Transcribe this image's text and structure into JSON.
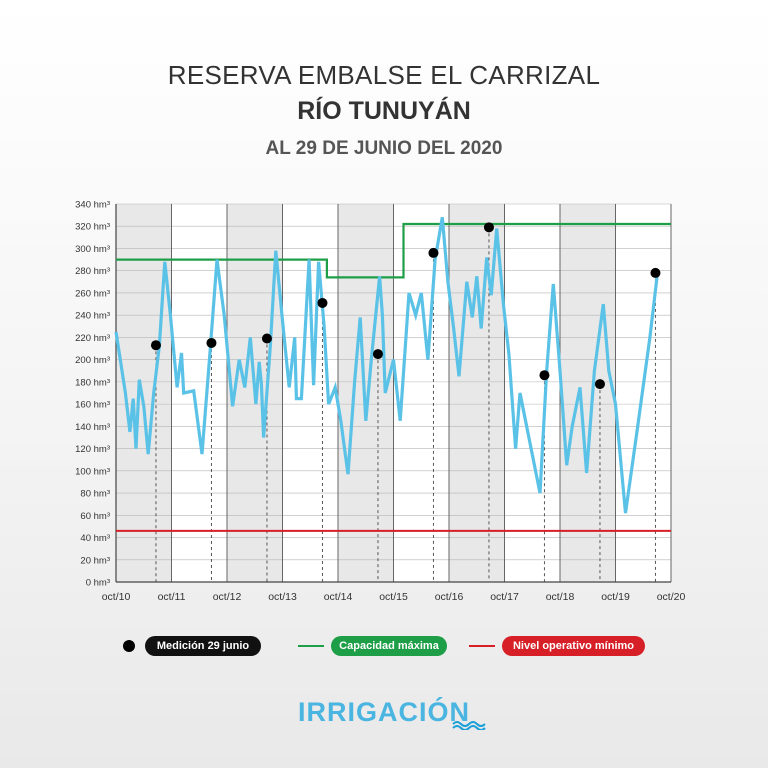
{
  "header": {
    "title": "RESERVA EMBALSE EL CARRIZAL",
    "subtitle": "RÍO TUNUYÁN",
    "date": "AL 29 DE JUNIO DEL 2020"
  },
  "legend": {
    "medicion": "Medición 29 junio",
    "capacidad": "Capacidad máxima",
    "nivel": "Nivel operativo mínimo"
  },
  "brand": "IRRIGACIÓN",
  "colors": {
    "series": "#5bc2e7",
    "capacity": "#1e9e47",
    "minimum": "#d61f26",
    "point": "#000000",
    "grid": "#666666"
  },
  "chart_data": {
    "type": "line",
    "title": "RESERVA EMBALSE EL CARRIZAL — RÍO TUNUYÁN",
    "ylabel": "hm³",
    "y_unit_suffix": " hm³",
    "ylim": [
      0,
      340
    ],
    "xlim": [
      0,
      10
    ],
    "y_ticks": [
      0,
      20,
      40,
      60,
      80,
      100,
      120,
      140,
      160,
      180,
      200,
      220,
      240,
      260,
      280,
      300,
      320,
      340
    ],
    "x_ticks": [
      {
        "x": 0,
        "label": "oct/10"
      },
      {
        "x": 1,
        "label": "oct/11"
      },
      {
        "x": 2,
        "label": "oct/12"
      },
      {
        "x": 3,
        "label": "oct/13"
      },
      {
        "x": 4,
        "label": "oct/14"
      },
      {
        "x": 5,
        "label": "oct/15"
      },
      {
        "x": 6,
        "label": "oct/16"
      },
      {
        "x": 7,
        "label": "oct/17"
      },
      {
        "x": 8,
        "label": "oct/18"
      },
      {
        "x": 9,
        "label": "oct/19"
      },
      {
        "x": 10,
        "label": "oct/20"
      }
    ],
    "series": [
      {
        "name": "Reserva",
        "points": [
          [
            0.0,
            225
          ],
          [
            0.17,
            170
          ],
          [
            0.25,
            135
          ],
          [
            0.31,
            165
          ],
          [
            0.36,
            120
          ],
          [
            0.42,
            182
          ],
          [
            0.5,
            158
          ],
          [
            0.58,
            115
          ],
          [
            0.68,
            170
          ],
          [
            0.78,
            212
          ],
          [
            0.88,
            288
          ],
          [
            0.98,
            240
          ],
          [
            1.1,
            175
          ],
          [
            1.18,
            206
          ],
          [
            1.22,
            170
          ],
          [
            1.4,
            172
          ],
          [
            1.55,
            115
          ],
          [
            1.7,
            210
          ],
          [
            1.82,
            290
          ],
          [
            1.95,
            240
          ],
          [
            2.1,
            158
          ],
          [
            2.22,
            200
          ],
          [
            2.32,
            175
          ],
          [
            2.42,
            220
          ],
          [
            2.52,
            160
          ],
          [
            2.58,
            198
          ],
          [
            2.62,
            178
          ],
          [
            2.66,
            130
          ],
          [
            2.78,
            212
          ],
          [
            2.88,
            298
          ],
          [
            3.0,
            235
          ],
          [
            3.12,
            175
          ],
          [
            3.22,
            220
          ],
          [
            3.25,
            165
          ],
          [
            3.34,
            165
          ],
          [
            3.48,
            290
          ],
          [
            3.56,
            177
          ],
          [
            3.65,
            288
          ],
          [
            3.75,
            230
          ],
          [
            3.83,
            160
          ],
          [
            3.95,
            175
          ],
          [
            4.05,
            145
          ],
          [
            4.18,
            97
          ],
          [
            4.3,
            180
          ],
          [
            4.4,
            238
          ],
          [
            4.5,
            145
          ],
          [
            4.6,
            200
          ],
          [
            4.75,
            275
          ],
          [
            4.8,
            240
          ],
          [
            4.85,
            170
          ],
          [
            5.0,
            200
          ],
          [
            5.12,
            145
          ],
          [
            5.28,
            260
          ],
          [
            5.4,
            240
          ],
          [
            5.5,
            260
          ],
          [
            5.62,
            200
          ],
          [
            5.75,
            290
          ],
          [
            5.88,
            328
          ],
          [
            5.98,
            270
          ],
          [
            6.08,
            230
          ],
          [
            6.18,
            185
          ],
          [
            6.32,
            270
          ],
          [
            6.42,
            238
          ],
          [
            6.5,
            275
          ],
          [
            6.58,
            228
          ],
          [
            6.68,
            292
          ],
          [
            6.76,
            258
          ],
          [
            6.86,
            318
          ],
          [
            6.98,
            250
          ],
          [
            7.08,
            205
          ],
          [
            7.2,
            120
          ],
          [
            7.28,
            170
          ],
          [
            7.48,
            120
          ],
          [
            7.64,
            80
          ],
          [
            7.76,
            190
          ],
          [
            7.88,
            268
          ],
          [
            8.0,
            190
          ],
          [
            8.12,
            105
          ],
          [
            8.22,
            140
          ],
          [
            8.36,
            175
          ],
          [
            8.48,
            98
          ],
          [
            8.62,
            190
          ],
          [
            8.78,
            250
          ],
          [
            8.88,
            190
          ],
          [
            9.0,
            160
          ],
          [
            9.18,
            62
          ],
          [
            9.4,
            140
          ],
          [
            9.62,
            220
          ],
          [
            9.75,
            275
          ]
        ]
      }
    ],
    "capacity_maxima": [
      [
        0,
        290
      ],
      [
        3.8,
        290
      ],
      [
        3.8,
        274
      ],
      [
        5.18,
        274
      ],
      [
        5.18,
        322
      ],
      [
        10,
        322
      ]
    ],
    "nivel_operativo_minimo": 46,
    "mediciones_29_junio": [
      {
        "x": 0.72,
        "y": 213
      },
      {
        "x": 1.72,
        "y": 215
      },
      {
        "x": 2.72,
        "y": 219
      },
      {
        "x": 3.72,
        "y": 251
      },
      {
        "x": 4.72,
        "y": 205
      },
      {
        "x": 5.72,
        "y": 296
      },
      {
        "x": 6.72,
        "y": 319
      },
      {
        "x": 7.72,
        "y": 186
      },
      {
        "x": 8.72,
        "y": 178
      },
      {
        "x": 9.72,
        "y": 278
      }
    ]
  }
}
